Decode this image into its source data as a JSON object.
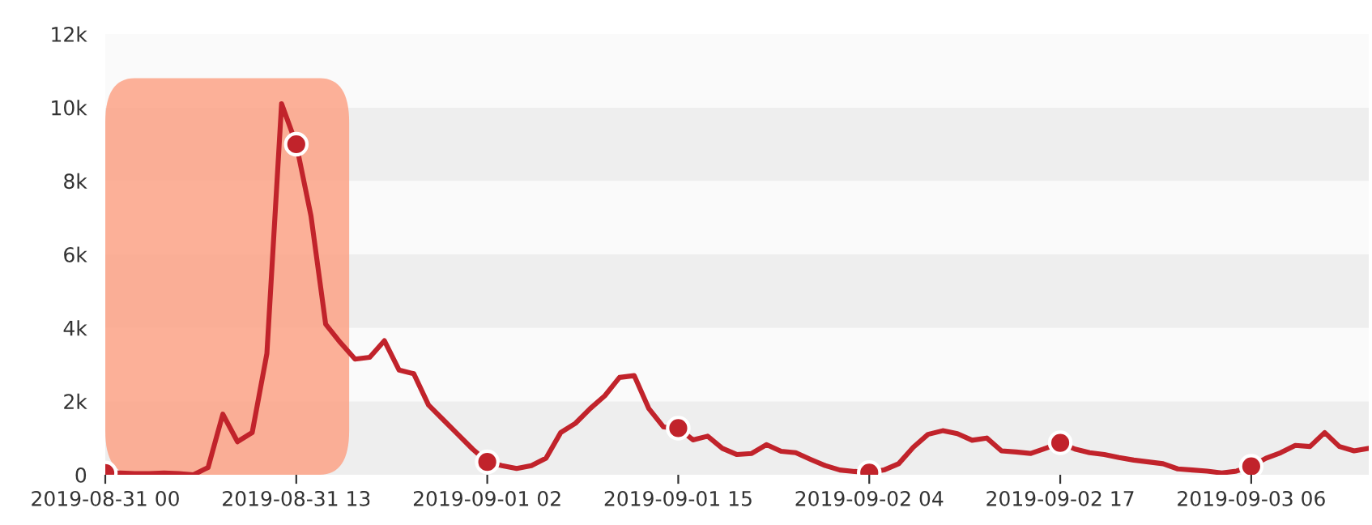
{
  "chart_data": {
    "type": "line",
    "categories": [
      "2019-08-31 00",
      null,
      null,
      null,
      null,
      null,
      null,
      null,
      null,
      null,
      null,
      null,
      null,
      "2019-08-31 13",
      null,
      null,
      null,
      null,
      null,
      null,
      null,
      null,
      null,
      null,
      null,
      null,
      "2019-09-01 02",
      null,
      null,
      null,
      null,
      null,
      null,
      null,
      null,
      null,
      null,
      null,
      null,
      "2019-09-01 15",
      null,
      null,
      null,
      null,
      null,
      null,
      null,
      null,
      null,
      null,
      null,
      null,
      "2019-09-02 04",
      null,
      null,
      null,
      null,
      null,
      null,
      null,
      null,
      null,
      null,
      null,
      null,
      "2019-09-02 17",
      null,
      null,
      null,
      null,
      null,
      null,
      null,
      null,
      null,
      null,
      null,
      null,
      "2019-09-03 06",
      null,
      null,
      null,
      null,
      null,
      null,
      null,
      null
    ],
    "series": [
      {
        "type": "line",
        "color": "#c1232b",
        "marker": "none",
        "values": [
          50,
          50,
          30,
          30,
          50,
          30,
          0,
          200,
          1650,
          900,
          1150,
          3300,
          10100,
          9000,
          7050,
          4100,
          3600,
          3150,
          3200,
          3650,
          2850,
          2750,
          1900,
          1500,
          1100,
          700,
          350,
          250,
          170,
          250,
          450,
          1150,
          1400,
          1800,
          2150,
          2650,
          2700,
          1800,
          1300,
          1270,
          950,
          1050,
          720,
          550,
          580,
          820,
          640,
          600,
          420,
          250,
          130,
          90,
          60,
          130,
          300,
          750,
          1100,
          1200,
          1120,
          940,
          1000,
          650,
          620,
          580,
          720,
          870,
          700,
          600,
          550,
          470,
          400,
          350,
          300,
          160,
          130,
          100,
          50,
          100,
          230,
          450,
          600,
          800,
          770,
          1150,
          770,
          650,
          720
        ]
      },
      {
        "type": "scatter",
        "color": "#c1232b",
        "marker": "circle",
        "x": [
          "2019-08-31 00",
          "2019-08-31 13",
          "2019-09-01 02",
          "2019-09-01 15",
          "2019-09-02 04",
          "2019-09-02 17",
          "2019-09-03 06"
        ],
        "values": [
          50,
          9000,
          350,
          1270,
          60,
          870,
          230
        ]
      }
    ],
    "ylim": [
      0,
      12000
    ],
    "yticks": [
      0,
      {
        "value": 2000,
        "label": "2k"
      },
      {
        "value": 4000,
        "label": "4k"
      },
      {
        "value": 6000,
        "label": "6k"
      },
      {
        "value": 8000,
        "label": "8k"
      },
      {
        "value": 10000,
        "label": "10k"
      },
      {
        "value": 12000,
        "label": "12k"
      }
    ]
  }
}
